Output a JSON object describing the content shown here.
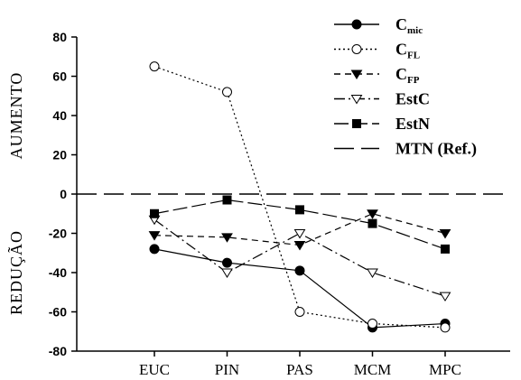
{
  "chart_data": {
    "type": "line",
    "categories": [
      "EUC",
      "PIN",
      "PAS",
      "MCM",
      "MPC"
    ],
    "ylim": [
      -80,
      80
    ],
    "yticks": [
      80,
      60,
      40,
      20,
      0,
      -20,
      -40,
      -60,
      -80
    ],
    "ylabel_upper": "AUMENTO",
    "ylabel_lower": "REDUÇÃO",
    "reference": {
      "name": "MTN (Ref.)",
      "value": 0
    },
    "series": [
      {
        "name": "C",
        "sub": "mic",
        "line": "solid",
        "marker": "circle-filled",
        "values": [
          -28,
          -35,
          -39,
          -68,
          -66
        ]
      },
      {
        "name": "C",
        "sub": "FL",
        "line": "dotted",
        "marker": "circle-open",
        "values": [
          65,
          52,
          -60,
          -66,
          -68
        ]
      },
      {
        "name": "C",
        "sub": "FP",
        "line": "dashed",
        "marker": "triangle-down-filled",
        "values": [
          -21,
          -22,
          -26,
          -10,
          -20
        ]
      },
      {
        "name": "EstC",
        "sub": "",
        "line": "dashdot",
        "marker": "triangle-down-open",
        "values": [
          -13,
          -40,
          -20,
          -40,
          -52
        ]
      },
      {
        "name": "EstN",
        "sub": "",
        "line": "longdash",
        "marker": "square-filled",
        "values": [
          -10,
          -3,
          -8,
          -15,
          -28
        ]
      }
    ]
  }
}
